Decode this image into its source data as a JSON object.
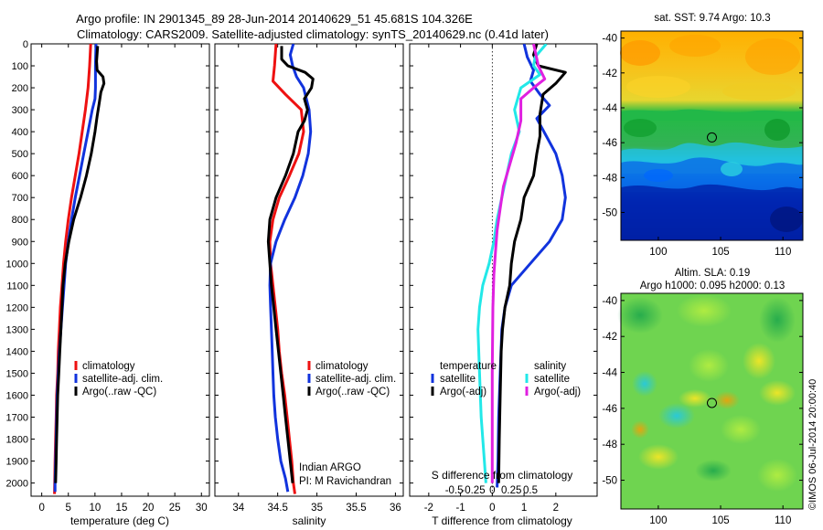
{
  "header": {
    "line1": "Argo profile: IN 2901345_89 28-Jun-2014 20140629_51 45.681S 104.326E",
    "line2": "Climatology: CARS2009. Satellite-adjusted climatology: synTS_20140629.nc (0.41d later)"
  },
  "colors": {
    "red": "#ee1111",
    "blue": "#1133dd",
    "black": "#000000",
    "cyan": "#22e8e8",
    "magenta": "#e020e0"
  },
  "chart_data": [
    {
      "id": "temperature",
      "type": "line",
      "xlabel": "temperature (deg C)",
      "xlim": [
        -2,
        31.5
      ],
      "xticks": [
        0,
        5,
        10,
        15,
        20,
        25,
        30
      ],
      "ylim": [
        2060,
        0
      ],
      "yticks": [
        0,
        100,
        200,
        300,
        400,
        500,
        600,
        700,
        800,
        900,
        1000,
        1100,
        1200,
        1300,
        1400,
        1500,
        1600,
        1700,
        1800,
        1900,
        2000
      ],
      "legend": [
        "climatology",
        "satellite-adj. clim.",
        "Argo(..raw -QC)"
      ],
      "series": [
        {
          "name": "climatology",
          "color": "red",
          "points": [
            [
              9.2,
              0
            ],
            [
              9.0,
              100
            ],
            [
              8.7,
              200
            ],
            [
              8.2,
              300
            ],
            [
              7.6,
              400
            ],
            [
              7.0,
              500
            ],
            [
              6.3,
              600
            ],
            [
              5.6,
              700
            ],
            [
              5.0,
              800
            ],
            [
              4.5,
              900
            ],
            [
              4.1,
              1000
            ],
            [
              3.8,
              1100
            ],
            [
              3.5,
              1200
            ],
            [
              3.3,
              1300
            ],
            [
              3.1,
              1400
            ],
            [
              3.0,
              1500
            ],
            [
              2.8,
              1600
            ],
            [
              2.7,
              1700
            ],
            [
              2.6,
              1800
            ],
            [
              2.5,
              1900
            ],
            [
              2.4,
              2050
            ]
          ]
        },
        {
          "name": "satellite-adj. clim.",
          "color": "blue",
          "points": [
            [
              10.2,
              0
            ],
            [
              10.1,
              100
            ],
            [
              10.1,
              200
            ],
            [
              10.0,
              250
            ],
            [
              9.5,
              300
            ],
            [
              8.7,
              400
            ],
            [
              7.9,
              500
            ],
            [
              7.1,
              600
            ],
            [
              6.3,
              700
            ],
            [
              5.6,
              800
            ],
            [
              5.0,
              900
            ],
            [
              4.5,
              1000
            ],
            [
              4.2,
              1100
            ],
            [
              3.9,
              1200
            ],
            [
              3.6,
              1300
            ],
            [
              3.3,
              1400
            ],
            [
              3.1,
              1500
            ],
            [
              2.9,
              1600
            ],
            [
              2.8,
              1700
            ],
            [
              2.7,
              1800
            ],
            [
              2.6,
              1900
            ],
            [
              2.5,
              2000
            ],
            [
              2.5,
              2040
            ]
          ]
        },
        {
          "name": "Argo(..raw -QC)",
          "color": "black",
          "points": [
            [
              10.5,
              10
            ],
            [
              10.3,
              80
            ],
            [
              10.4,
              120
            ],
            [
              11.5,
              150
            ],
            [
              11.7,
              180
            ],
            [
              11.1,
              220
            ],
            [
              10.8,
              270
            ],
            [
              10.4,
              330
            ],
            [
              10.0,
              400
            ],
            [
              9.3,
              500
            ],
            [
              8.4,
              600
            ],
            [
              7.3,
              700
            ],
            [
              6.0,
              800
            ],
            [
              5.1,
              900
            ],
            [
              4.4,
              1000
            ],
            [
              4.0,
              1100
            ],
            [
              3.8,
              1200
            ],
            [
              3.6,
              1300
            ],
            [
              3.4,
              1400
            ],
            [
              3.2,
              1500
            ],
            [
              3.0,
              1600
            ],
            [
              2.9,
              1700
            ],
            [
              2.8,
              1800
            ],
            [
              2.7,
              1900
            ],
            [
              2.6,
              2000
            ]
          ]
        }
      ]
    },
    {
      "id": "salinity",
      "type": "line",
      "xlabel": "salinity",
      "xlim": [
        33.7,
        36.1
      ],
      "xticks": [
        34,
        34.5,
        35,
        35.5,
        36
      ],
      "ylim": [
        2060,
        0
      ],
      "legend": [
        "climatology",
        "satellite-adj. clim.",
        "Argo(..raw -QC)"
      ],
      "annotation": [
        "Indian ARGO",
        "PI: M Ravichandran"
      ],
      "series": [
        {
          "name": "climatology",
          "color": "red",
          "points": [
            [
              34.48,
              0
            ],
            [
              34.46,
              100
            ],
            [
              34.44,
              170
            ],
            [
              34.6,
              230
            ],
            [
              34.8,
              300
            ],
            [
              34.83,
              400
            ],
            [
              34.77,
              500
            ],
            [
              34.65,
              600
            ],
            [
              34.52,
              700
            ],
            [
              34.44,
              800
            ],
            [
              34.4,
              900
            ],
            [
              34.41,
              1000
            ],
            [
              34.44,
              1100
            ],
            [
              34.47,
              1200
            ],
            [
              34.5,
              1300
            ],
            [
              34.52,
              1400
            ],
            [
              34.55,
              1500
            ],
            [
              34.59,
              1600
            ],
            [
              34.62,
              1700
            ],
            [
              34.65,
              1800
            ],
            [
              34.68,
              1900
            ],
            [
              34.7,
              2000
            ],
            [
              34.72,
              2050
            ]
          ]
        },
        {
          "name": "satellite-adj. clim.",
          "color": "blue",
          "points": [
            [
              34.7,
              0
            ],
            [
              34.66,
              50
            ],
            [
              34.69,
              100
            ],
            [
              34.74,
              150
            ],
            [
              34.83,
              200
            ],
            [
              34.9,
              300
            ],
            [
              34.92,
              400
            ],
            [
              34.89,
              500
            ],
            [
              34.82,
              600
            ],
            [
              34.72,
              700
            ],
            [
              34.59,
              800
            ],
            [
              34.48,
              900
            ],
            [
              34.41,
              1000
            ],
            [
              34.4,
              1100
            ],
            [
              34.41,
              1200
            ],
            [
              34.42,
              1300
            ],
            [
              34.43,
              1400
            ],
            [
              34.44,
              1500
            ],
            [
              34.45,
              1600
            ],
            [
              34.47,
              1700
            ],
            [
              34.5,
              1800
            ],
            [
              34.54,
              1900
            ],
            [
              34.6,
              1980
            ],
            [
              34.63,
              2040
            ]
          ]
        },
        {
          "name": "Argo(..raw -QC)",
          "color": "black",
          "points": [
            [
              34.55,
              10
            ],
            [
              34.55,
              70
            ],
            [
              34.63,
              100
            ],
            [
              34.85,
              130
            ],
            [
              34.95,
              160
            ],
            [
              34.93,
              200
            ],
            [
              34.84,
              250
            ],
            [
              34.88,
              300
            ],
            [
              34.84,
              350
            ],
            [
              34.76,
              400
            ],
            [
              34.7,
              500
            ],
            [
              34.6,
              600
            ],
            [
              34.48,
              700
            ],
            [
              34.4,
              800
            ],
            [
              34.38,
              900
            ],
            [
              34.4,
              1000
            ],
            [
              34.42,
              1100
            ],
            [
              34.45,
              1200
            ],
            [
              34.48,
              1300
            ],
            [
              34.51,
              1400
            ],
            [
              34.54,
              1500
            ],
            [
              34.57,
              1600
            ],
            [
              34.6,
              1700
            ],
            [
              34.63,
              1800
            ],
            [
              34.66,
              1900
            ],
            [
              34.69,
              2000
            ]
          ]
        }
      ]
    },
    {
      "id": "difference",
      "type": "line",
      "xlabel": "T difference from climatology",
      "xlabel2": "S difference from climatology",
      "xlim": [
        -2.6,
        3.3
      ],
      "xticks": [
        -2,
        -1,
        0,
        1,
        2
      ],
      "xticks2_labels": [
        "-0.5",
        "-0.25",
        "0",
        "0.25",
        "0.5"
      ],
      "ylim": [
        2060,
        0
      ],
      "legend_left_title": "temperature",
      "legend_right_title": "salinity",
      "legend_left": [
        "satellite",
        "Argo(-adj)"
      ],
      "legend_right": [
        "satellite",
        "Argo(-adj)"
      ],
      "series": [
        {
          "name": "temperature satellite",
          "color": "blue",
          "points": [
            [
              1.0,
              0
            ],
            [
              1.1,
              60
            ],
            [
              1.3,
              120
            ],
            [
              1.2,
              170
            ],
            [
              1.5,
              230
            ],
            [
              1.8,
              280
            ],
            [
              1.4,
              340
            ],
            [
              1.7,
              420
            ],
            [
              2.0,
              500
            ],
            [
              2.2,
              600
            ],
            [
              2.3,
              700
            ],
            [
              2.2,
              800
            ],
            [
              1.8,
              900
            ],
            [
              1.2,
              1000
            ],
            [
              0.6,
              1100
            ],
            [
              0.4,
              1200
            ],
            [
              0.3,
              1300
            ],
            [
              0.25,
              1500
            ],
            [
              0.2,
              1700
            ],
            [
              0.18,
              1900
            ],
            [
              0.15,
              2020
            ]
          ]
        },
        {
          "name": "temperature Argo(-adj)",
          "color": "black",
          "points": [
            [
              1.4,
              0
            ],
            [
              1.3,
              50
            ],
            [
              1.45,
              100
            ],
            [
              2.3,
              130
            ],
            [
              2.0,
              180
            ],
            [
              1.6,
              230
            ],
            [
              1.5,
              320
            ],
            [
              1.5,
              420
            ],
            [
              1.4,
              500
            ],
            [
              1.3,
              600
            ],
            [
              1.0,
              700
            ],
            [
              0.9,
              800
            ],
            [
              0.7,
              900
            ],
            [
              0.6,
              1000
            ],
            [
              0.55,
              1100
            ],
            [
              0.4,
              1200
            ],
            [
              0.32,
              1300
            ],
            [
              0.28,
              1400
            ],
            [
              0.25,
              1600
            ],
            [
              0.22,
              1800
            ],
            [
              0.2,
              2000
            ]
          ]
        },
        {
          "name": "salinity satellite",
          "color": "cyan",
          "points": [
            [
              1.7,
              0
            ],
            [
              1.35,
              60
            ],
            [
              1.3,
              100
            ],
            [
              1.5,
              140
            ],
            [
              0.9,
              200
            ],
            [
              0.7,
              300
            ],
            [
              0.85,
              400
            ],
            [
              0.6,
              500
            ],
            [
              0.45,
              600
            ],
            [
              0.3,
              700
            ],
            [
              0.15,
              800
            ],
            [
              0.05,
              900
            ],
            [
              -0.1,
              1000
            ],
            [
              -0.3,
              1100
            ],
            [
              -0.4,
              1200
            ],
            [
              -0.45,
              1300
            ],
            [
              -0.4,
              1500
            ],
            [
              -0.35,
              1700
            ],
            [
              -0.25,
              1900
            ],
            [
              -0.2,
              2000
            ]
          ]
        },
        {
          "name": "salinity Argo(-adj)",
          "color": "magenta",
          "points": [
            [
              1.3,
              0
            ],
            [
              1.45,
              100
            ],
            [
              1.65,
              160
            ],
            [
              1.3,
              200
            ],
            [
              0.9,
              250
            ],
            [
              0.9,
              350
            ],
            [
              0.75,
              450
            ],
            [
              0.55,
              550
            ],
            [
              0.35,
              650
            ],
            [
              0.25,
              750
            ],
            [
              0.15,
              850
            ],
            [
              0.1,
              950
            ],
            [
              0.05,
              1050
            ],
            [
              0.02,
              1200
            ],
            [
              0.0,
              1500
            ],
            [
              0.0,
              2000
            ]
          ]
        }
      ]
    }
  ],
  "maps": [
    {
      "id": "sst-map",
      "title": "sat. SST: 9.74 Argo: 10.3",
      "xticks": [
        100,
        105,
        110
      ],
      "yticks": [
        -40,
        -42,
        -44,
        -46,
        -48,
        -50
      ],
      "xlim": [
        97,
        111.6
      ],
      "ylim": [
        -51.6,
        -39.6
      ],
      "marker": [
        104.3,
        -45.7
      ]
    },
    {
      "id": "sla-map",
      "title_line1": "Altim. SLA: 0.19",
      "title_line2": "Argo h1000: 0.095 h2000: 0.13",
      "xticks": [
        100,
        105,
        110
      ],
      "yticks": [
        -40,
        -42,
        -44,
        -46,
        -48,
        -50
      ],
      "xlim": [
        97,
        111.6
      ],
      "ylim": [
        -51.6,
        -39.6
      ],
      "marker": [
        104.3,
        -45.7
      ]
    }
  ],
  "footer": {
    "credit": "©IMOS 06-Jul-2014 20:00:40"
  }
}
